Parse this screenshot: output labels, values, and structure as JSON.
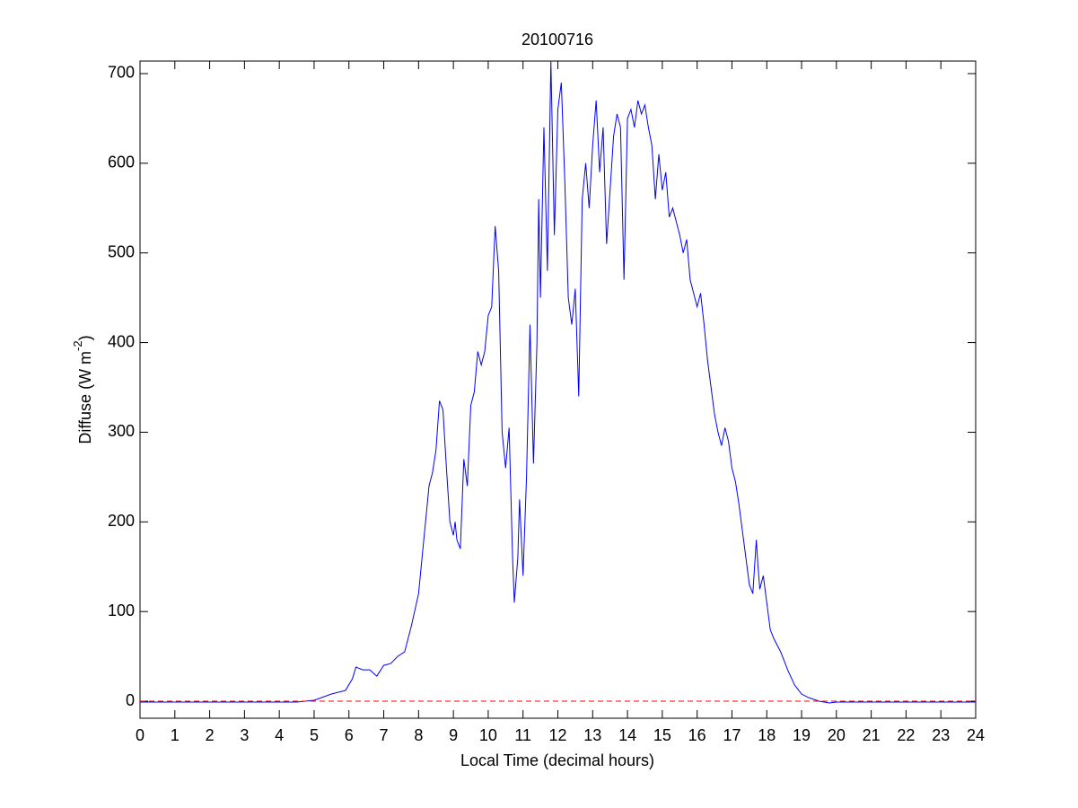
{
  "chart_data": {
    "type": "line",
    "title": "20100716",
    "xlabel": "Local Time (decimal hours)",
    "ylabel": [
      "Diffuse (W m",
      "-2",
      ")"
    ],
    "x": [
      0,
      1,
      2,
      3,
      4,
      4.5,
      5.0,
      5.5,
      5.9,
      6.1,
      6.2,
      6.4,
      6.6,
      6.8,
      7.0,
      7.2,
      7.4,
      7.6,
      7.8,
      8.0,
      8.1,
      8.3,
      8.4,
      8.5,
      8.6,
      8.7,
      8.8,
      8.9,
      9.0,
      9.05,
      9.1,
      9.2,
      9.3,
      9.4,
      9.5,
      9.6,
      9.7,
      9.8,
      9.9,
      10.0,
      10.1,
      10.2,
      10.3,
      10.4,
      10.5,
      10.6,
      10.7,
      10.75,
      10.85,
      10.9,
      11.0,
      11.1,
      11.2,
      11.3,
      11.4,
      11.45,
      11.5,
      11.6,
      11.7,
      11.8,
      11.9,
      12.0,
      12.1,
      12.2,
      12.3,
      12.4,
      12.5,
      12.6,
      12.7,
      12.8,
      12.9,
      13.0,
      13.1,
      13.2,
      13.3,
      13.4,
      13.5,
      13.6,
      13.7,
      13.8,
      13.9,
      14.0,
      14.1,
      14.2,
      14.3,
      14.4,
      14.5,
      14.6,
      14.7,
      14.8,
      14.9,
      15.0,
      15.1,
      15.2,
      15.3,
      15.4,
      15.5,
      15.6,
      15.7,
      15.8,
      15.9,
      16.0,
      16.1,
      16.2,
      16.3,
      16.4,
      16.5,
      16.6,
      16.7,
      16.8,
      16.9,
      17.0,
      17.1,
      17.2,
      17.3,
      17.4,
      17.5,
      17.6,
      17.7,
      17.75,
      17.8,
      17.9,
      18.0,
      18.1,
      18.2,
      18.4,
      18.6,
      18.8,
      19.0,
      19.2,
      19.5,
      19.8,
      20.0,
      21,
      22,
      23,
      24
    ],
    "series": [
      {
        "color": "#0000ff",
        "values": [
          -1,
          -1,
          -1,
          -1,
          -1,
          -1,
          1,
          8,
          12,
          25,
          38,
          35,
          35,
          28,
          40,
          42,
          50,
          55,
          85,
          120,
          160,
          240,
          255,
          280,
          335,
          325,
          260,
          200,
          185,
          200,
          180,
          170,
          270,
          240,
          330,
          345,
          390,
          375,
          390,
          430,
          440,
          530,
          480,
          300,
          260,
          305,
          160,
          110,
          160,
          225,
          140,
          250,
          420,
          265,
          400,
          560,
          450,
          640,
          480,
          714,
          520,
          660,
          690,
          580,
          450,
          420,
          460,
          340,
          560,
          600,
          550,
          620,
          670,
          590,
          640,
          510,
          570,
          630,
          655,
          640,
          470,
          650,
          660,
          640,
          670,
          655,
          665,
          640,
          620,
          560,
          610,
          570,
          590,
          540,
          550,
          535,
          520,
          500,
          515,
          470,
          455,
          440,
          455,
          420,
          380,
          350,
          320,
          300,
          285,
          305,
          290,
          260,
          245,
          220,
          190,
          160,
          130,
          120,
          180,
          150,
          125,
          140,
          110,
          80,
          70,
          55,
          35,
          18,
          8,
          4,
          0,
          -2,
          -1,
          -1,
          -1,
          -1,
          -1
        ]
      }
    ],
    "hline": {
      "value": 0,
      "color": "#ff0000",
      "style": "dashed"
    },
    "xlim": [
      0,
      24
    ],
    "xticks": [
      0,
      1,
      2,
      3,
      4,
      5,
      6,
      7,
      8,
      9,
      10,
      11,
      12,
      13,
      14,
      15,
      16,
      17,
      18,
      19,
      20,
      21,
      22,
      23,
      24
    ],
    "ylim": [
      -19,
      714
    ],
    "yticks": [
      0,
      100,
      200,
      300,
      400,
      500,
      600,
      700
    ]
  }
}
